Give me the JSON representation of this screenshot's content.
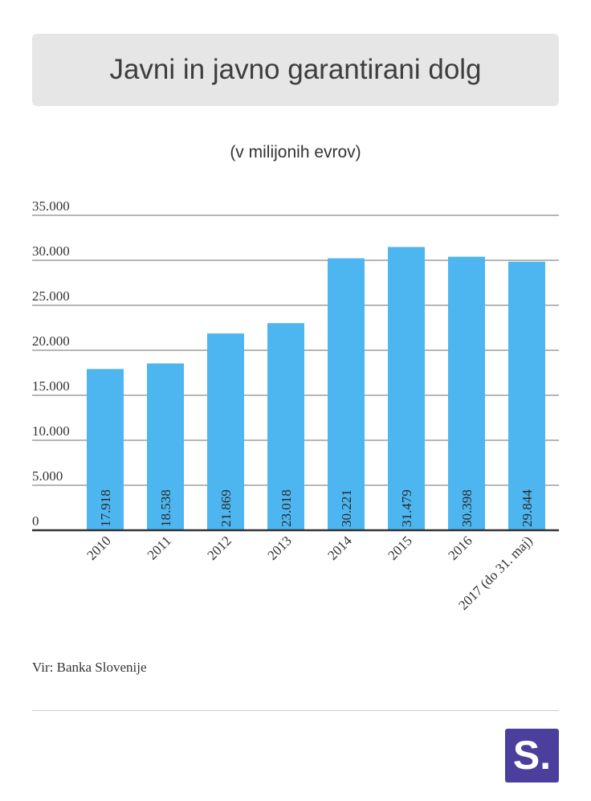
{
  "header": {
    "title": "Javni in javno garantirani dolg"
  },
  "subtitle": "(v milijonih evrov)",
  "source": "Vir: Banka Slovenije",
  "logo": {
    "text": "S.",
    "color": "#4b3f9e"
  },
  "colors": {
    "bar": "#4db6f0",
    "grid": "#6e6e6e",
    "axis": "#333333"
  },
  "chart_data": {
    "type": "bar",
    "title": "Javni in javno garantirani dolg",
    "subtitle": "(v milijonih evrov)",
    "categories": [
      "2010",
      "2011",
      "2012",
      "2013",
      "2014",
      "2015",
      "2016",
      "2017 (do 31. maj)"
    ],
    "values": [
      17918,
      18538,
      21869,
      23018,
      30221,
      31479,
      30398,
      29844
    ],
    "value_labels": [
      "17.918",
      "18.538",
      "21.869",
      "23.018",
      "30.221",
      "31.479",
      "30.398",
      "29.844"
    ],
    "y_ticks": [
      0,
      5000,
      10000,
      15000,
      20000,
      25000,
      30000,
      35000
    ],
    "y_tick_labels": [
      "0",
      "5.000",
      "10.000",
      "15.000",
      "20.000",
      "25.000",
      "30.000",
      "35.000"
    ],
    "ylim": [
      0,
      35000
    ],
    "grid": true,
    "legend": "none"
  }
}
